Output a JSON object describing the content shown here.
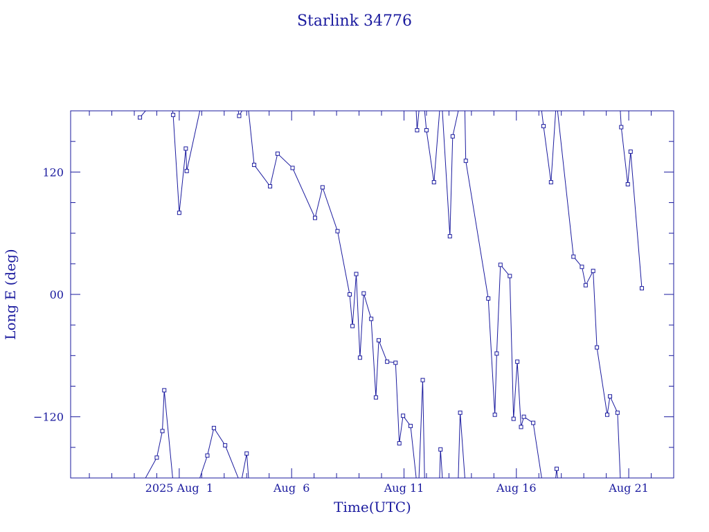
{
  "chart_data": {
    "type": "line",
    "title": "Starlink 34776",
    "xlabel": "Time(UTC)",
    "ylabel": "Long E (deg)",
    "x_axis": {
      "kind": "date",
      "range": [
        "2025-07-27T04:00",
        "2025-08-23T00:00"
      ],
      "tick_labels": [
        {
          "at": "2025-08-01",
          "label": "2025 Aug  1"
        },
        {
          "at": "2025-08-06",
          "label": "Aug  6"
        },
        {
          "at": "2025-08-11",
          "label": "Aug 11"
        },
        {
          "at": "2025-08-16",
          "label": "Aug 16"
        },
        {
          "at": "2025-08-21",
          "label": "Aug 21"
        }
      ]
    },
    "y_axis": {
      "range": [
        -180,
        180
      ],
      "ticks": [
        -120,
        0,
        120
      ],
      "tick_labels": [
        "−120",
        "00",
        "120"
      ],
      "minor_step": 30
    },
    "grid": false,
    "colors": {
      "line": "#1a1a9e",
      "marker": "#1a1a9e",
      "text": "#1a1a9e",
      "axes": "#1a1a9e"
    },
    "segments": [
      {
        "points": [
          [
            "2025-07-30T06:00",
            173.5
          ],
          [
            "2025-07-30T12:00",
            180
          ]
        ]
      },
      {
        "points": [
          [
            "2025-07-30T12:00",
            -180
          ],
          [
            "2025-07-31T00:00",
            -160
          ],
          [
            "2025-07-31T06:00",
            -134
          ],
          [
            "2025-07-31T08:00",
            -94
          ],
          [
            "2025-07-31T17:00",
            -180
          ]
        ]
      },
      {
        "points": [
          [
            "2025-07-31T17:00",
            180
          ],
          [
            "2025-07-31T17:30",
            176
          ],
          [
            "2025-08-01T00:00",
            80
          ],
          [
            "2025-08-01T07:00",
            143
          ],
          [
            "2025-08-01T08:00",
            121
          ],
          [
            "2025-08-01T22:00",
            180
          ]
        ]
      },
      {
        "points": [
          [
            "2025-08-01T22:00",
            -180
          ],
          [
            "2025-08-02T06:00",
            -158
          ],
          [
            "2025-08-02T13:00",
            -131
          ],
          [
            "2025-08-03T01:00",
            -148
          ],
          [
            "2025-08-03T15:00",
            -180
          ]
        ]
      },
      {
        "points": [
          [
            "2025-08-03T15:00",
            180
          ],
          [
            "2025-08-03T16:00",
            175
          ],
          [
            "2025-08-03T19:00",
            180
          ]
        ]
      },
      {
        "points": [
          [
            "2025-08-03T19:00",
            -180
          ],
          [
            "2025-08-04T00:00",
            -156
          ],
          [
            "2025-08-04T02:00",
            -180
          ]
        ]
      },
      {
        "points": [
          [
            "2025-08-04T02:00",
            180
          ],
          [
            "2025-08-04T08:00",
            127
          ],
          [
            "2025-08-05T01:00",
            106
          ],
          [
            "2025-08-05T09:00",
            138
          ],
          [
            "2025-08-06T01:00",
            124
          ],
          [
            "2025-08-07T01:00",
            75
          ],
          [
            "2025-08-07T09:00",
            105
          ],
          [
            "2025-08-08T01:00",
            62
          ],
          [
            "2025-08-08T14:00",
            0
          ],
          [
            "2025-08-08T17:00",
            -31
          ],
          [
            "2025-08-08T21:00",
            20
          ],
          [
            "2025-08-09T01:00",
            -62
          ],
          [
            "2025-08-09T05:00",
            1
          ],
          [
            "2025-08-09T13:00",
            -24
          ],
          [
            "2025-08-09T18:00",
            -101
          ],
          [
            "2025-08-09T21:00",
            -45
          ],
          [
            "2025-08-10T06:00",
            -66
          ],
          [
            "2025-08-10T15:00",
            -67
          ],
          [
            "2025-08-10T19:00",
            -146
          ],
          [
            "2025-08-10T23:00",
            -119
          ],
          [
            "2025-08-11T07:00",
            -129
          ],
          [
            "2025-08-11T13:00",
            -180
          ]
        ]
      },
      {
        "points": [
          [
            "2025-08-11T13:00",
            180
          ],
          [
            "2025-08-11T14:00",
            161
          ],
          [
            "2025-08-11T16:00",
            180
          ]
        ]
      },
      {
        "points": [
          [
            "2025-08-11T16:00",
            -180
          ],
          [
            "2025-08-11T20:00",
            -84
          ],
          [
            "2025-08-11T22:00",
            -180
          ]
        ]
      },
      {
        "points": [
          [
            "2025-08-11T22:00",
            180
          ],
          [
            "2025-08-12T00:00",
            161
          ],
          [
            "2025-08-12T08:00",
            110
          ],
          [
            "2025-08-12T14:00",
            180
          ]
        ]
      },
      {
        "points": [
          [
            "2025-08-12T14:00",
            -180
          ],
          [
            "2025-08-12T15:00",
            -152
          ],
          [
            "2025-08-12T17:00",
            -180
          ]
        ]
      },
      {
        "points": [
          [
            "2025-08-12T17:00",
            180
          ],
          [
            "2025-08-13T01:00",
            57
          ],
          [
            "2025-08-13T04:00",
            155
          ],
          [
            "2025-08-13T10:00",
            180
          ]
        ]
      },
      {
        "points": [
          [
            "2025-08-13T10:00",
            -180
          ],
          [
            "2025-08-13T12:00",
            -116
          ],
          [
            "2025-08-13T17:00",
            -180
          ]
        ]
      },
      {
        "points": [
          [
            "2025-08-13T17:00",
            180
          ],
          [
            "2025-08-13T18:00",
            131
          ],
          [
            "2025-08-14T18:00",
            -4
          ],
          [
            "2025-08-15T01:00",
            -118
          ],
          [
            "2025-08-15T03:00",
            -58
          ],
          [
            "2025-08-15T07:00",
            29
          ],
          [
            "2025-08-15T17:00",
            18
          ],
          [
            "2025-08-15T21:00",
            -122
          ],
          [
            "2025-08-16T01:00",
            -66
          ],
          [
            "2025-08-16T05:00",
            -130
          ],
          [
            "2025-08-16T08:00",
            -120
          ],
          [
            "2025-08-16T18:00",
            -126
          ],
          [
            "2025-08-17T03:00",
            -180
          ]
        ]
      },
      {
        "points": [
          [
            "2025-08-17T03:00",
            180
          ],
          [
            "2025-08-17T05:00",
            165
          ],
          [
            "2025-08-17T13:00",
            110
          ],
          [
            "2025-08-17T18:00",
            180
          ]
        ]
      },
      {
        "points": [
          [
            "2025-08-17T18:00",
            -180
          ],
          [
            "2025-08-17T19:00",
            -171
          ],
          [
            "2025-08-17T20:00",
            -180
          ]
        ]
      },
      {
        "points": [
          [
            "2025-08-17T20:00",
            180
          ],
          [
            "2025-08-18T13:00",
            37
          ],
          [
            "2025-08-18T22:00",
            27
          ],
          [
            "2025-08-19T02:00",
            9
          ],
          [
            "2025-08-19T10:00",
            23
          ],
          [
            "2025-08-19T14:00",
            -52
          ],
          [
            "2025-08-20T01:00",
            -118
          ],
          [
            "2025-08-20T04:00",
            -100
          ],
          [
            "2025-08-20T12:00",
            -116
          ],
          [
            "2025-08-20T15:00",
            -180
          ]
        ]
      },
      {
        "points": [
          [
            "2025-08-20T15:00",
            180
          ],
          [
            "2025-08-20T16:00",
            164
          ],
          [
            "2025-08-20T23:00",
            108
          ],
          [
            "2025-08-21T02:00",
            140
          ],
          [
            "2025-08-21T14:00",
            6
          ]
        ]
      }
    ]
  }
}
